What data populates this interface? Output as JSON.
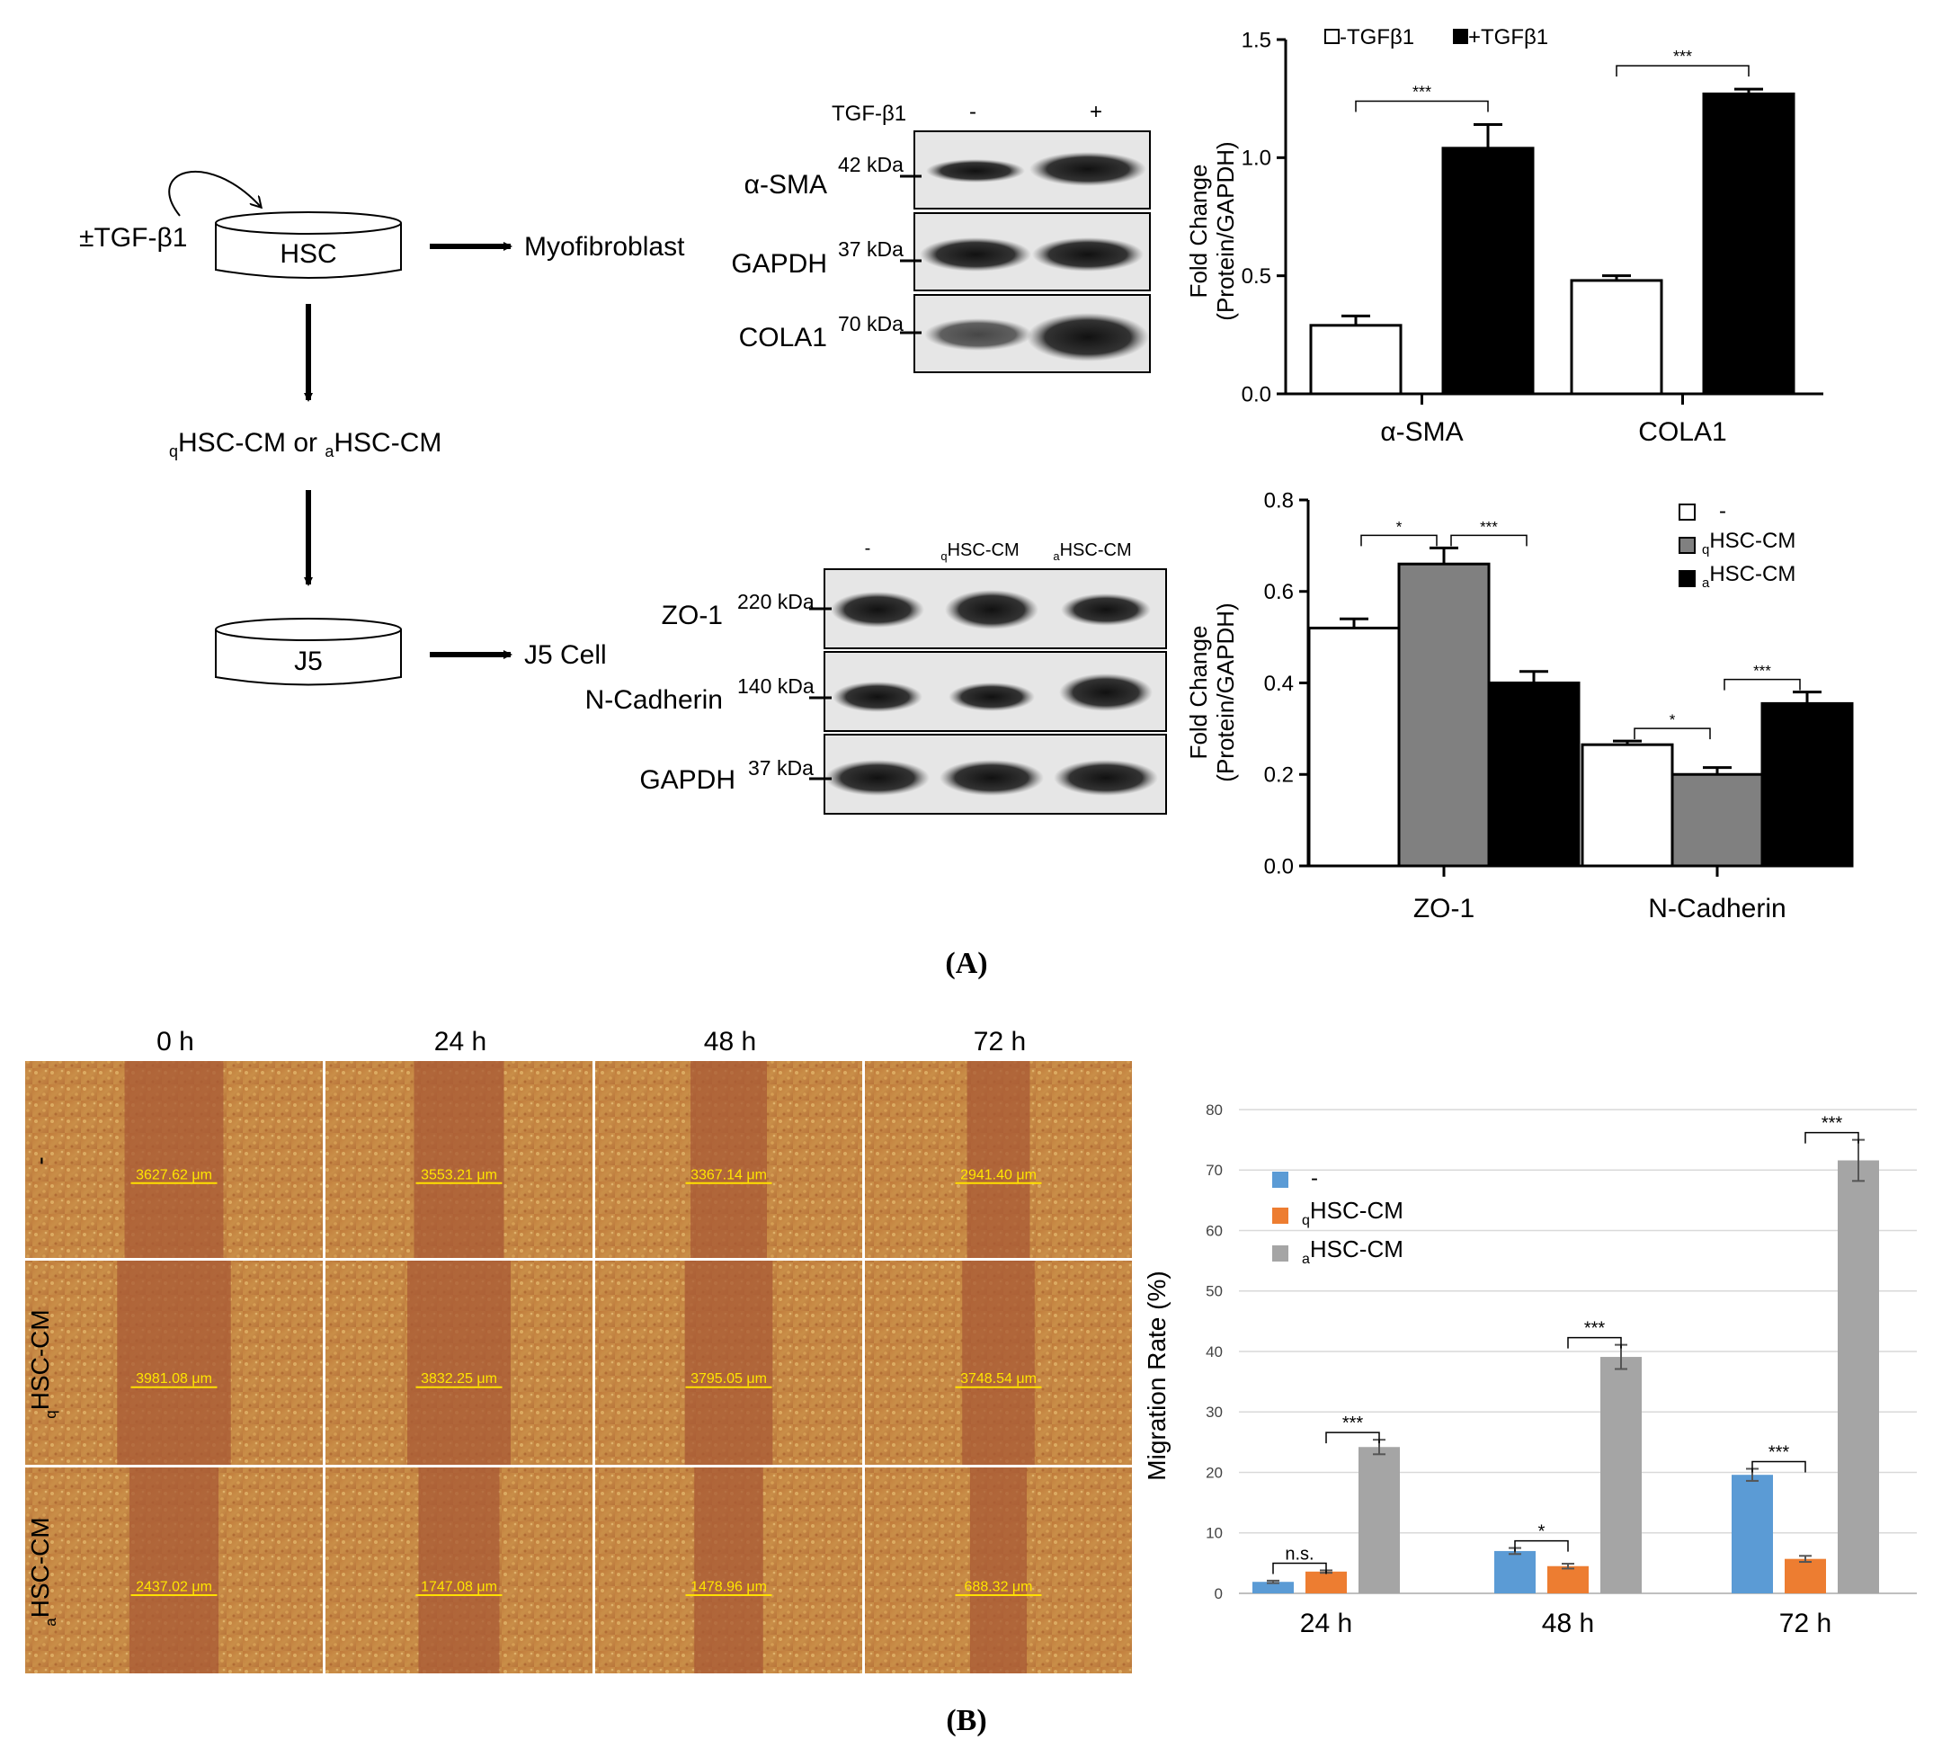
{
  "schematic": {
    "treatment": "±TGF-β1",
    "hsc": "HSC",
    "myofibroblast": "Myofibroblast",
    "conditioned_media_pre": "q",
    "conditioned_media_mid": "HSC-CM or ",
    "conditioned_media_sub2": "a",
    "conditioned_media_post": "HSC-CM",
    "j5": "J5",
    "j5_cell": "J5 Cell"
  },
  "blot_top": {
    "header_label": "TGF-β1",
    "lane_minus": "-",
    "lane_plus": "+",
    "rows": [
      {
        "protein": "α-SMA",
        "kda": "42 kDa"
      },
      {
        "protein": "GAPDH",
        "kda": "37 kDa"
      },
      {
        "protein": "COLA1",
        "kda": "70 kDa"
      }
    ]
  },
  "blot_bottom": {
    "lane1": "-",
    "lane2_sub": "q",
    "lane2": "HSC-CM",
    "lane3_sub": "a",
    "lane3": "HSC-CM",
    "rows": [
      {
        "protein": "ZO-1",
        "kda": "220 kDa"
      },
      {
        "protein": "N-Cadherin",
        "kda": "140 kDa"
      },
      {
        "protein": "GAPDH",
        "kda": "37 kDa"
      }
    ]
  },
  "chart_data": [
    {
      "type": "bar",
      "title": "",
      "ylabel": "Fold Change (Protein/GAPDH)",
      "ylabel_line1": "Fold Change",
      "ylabel_line2": "(Protein/GAPDH)",
      "categories": [
        "α-SMA",
        "COLA1"
      ],
      "series": [
        {
          "name": "-TGFβ1",
          "values": [
            0.29,
            0.48
          ],
          "errors": [
            0.04,
            0.02
          ],
          "color": "#ffffff"
        },
        {
          "name": "+TGFβ1",
          "values": [
            1.04,
            1.27
          ],
          "errors": [
            0.1,
            0.02
          ],
          "color": "#000000"
        }
      ],
      "ylim": [
        0,
        1.5
      ],
      "yticks": [
        0.0,
        0.5,
        1.0,
        1.5
      ],
      "ytick_labels": [
        "0.0",
        "0.5",
        "1.0",
        "1.5"
      ],
      "significance": [
        {
          "category": "α-SMA",
          "label": "***"
        },
        {
          "category": "COLA1",
          "label": "***"
        }
      ]
    },
    {
      "type": "bar",
      "title": "",
      "ylabel": "Fold Change (Protein/GAPDH)",
      "ylabel_line1": "Fold Change",
      "ylabel_line2": "(Protein/GAPDH)",
      "categories": [
        "ZO-1",
        "N-Cadherin"
      ],
      "series": [
        {
          "name": "-",
          "label_sub": "",
          "values": [
            0.52,
            0.265
          ],
          "errors": [
            0.02,
            0.008
          ],
          "color": "#ffffff"
        },
        {
          "name": "HSC-CM",
          "label_sub": "q",
          "values": [
            0.66,
            0.2
          ],
          "errors": [
            0.035,
            0.015
          ],
          "color": "#808080"
        },
        {
          "name": "HSC-CM",
          "label_sub": "a",
          "values": [
            0.4,
            0.355
          ],
          "errors": [
            0.025,
            0.025
          ],
          "color": "#000000"
        }
      ],
      "ylim": [
        0,
        0.8
      ],
      "yticks": [
        0.0,
        0.2,
        0.4,
        0.6,
        0.8
      ],
      "ytick_labels": [
        "0.0",
        "0.2",
        "0.4",
        "0.6",
        "0.8"
      ],
      "significance": [
        {
          "category": "ZO-1",
          "from": 0,
          "to": 1,
          "label": "*"
        },
        {
          "category": "ZO-1",
          "from": 1,
          "to": 2,
          "label": "***"
        },
        {
          "category": "N-Cadherin",
          "from": 0,
          "to": 1,
          "label": "*"
        },
        {
          "category": "N-Cadherin",
          "from": 1,
          "to": 2,
          "label": "***"
        }
      ]
    },
    {
      "type": "bar",
      "title": "",
      "ylabel": "Migration Rate (%)",
      "categories": [
        "24 h",
        "48 h",
        "72 h"
      ],
      "series": [
        {
          "name": "-",
          "label_sub": "",
          "values": [
            1.9,
            7.0,
            19.6
          ],
          "errors": [
            0.2,
            0.5,
            1.0
          ],
          "color": "#5b9bd5"
        },
        {
          "name": "HSC-CM",
          "label_sub": "q",
          "values": [
            3.6,
            4.5,
            5.7
          ],
          "errors": [
            0.2,
            0.4,
            0.5
          ],
          "color": "#ed7d31"
        },
        {
          "name": "HSC-CM",
          "label_sub": "a",
          "values": [
            24.2,
            39.1,
            71.6
          ],
          "errors": [
            1.2,
            2.0,
            3.4
          ],
          "color": "#a5a5a5"
        }
      ],
      "ylim": [
        0,
        80
      ],
      "yticks": [
        0,
        10,
        20,
        30,
        40,
        50,
        60,
        70,
        80
      ],
      "ytick_labels": [
        "0",
        "10",
        "20",
        "30",
        "40",
        "50",
        "60",
        "70",
        "80"
      ],
      "grid": true,
      "significance": [
        {
          "category": "24 h",
          "from": 0,
          "to": 1,
          "label": "n.s."
        },
        {
          "category": "24 h",
          "from": 1,
          "to": 2,
          "label": "***"
        },
        {
          "category": "48 h",
          "from": 0,
          "to": 1,
          "label": "*"
        },
        {
          "category": "48 h",
          "from": 1,
          "to": 2,
          "label": "***"
        },
        {
          "category": "72 h",
          "from": 0,
          "to": 1,
          "label": "***"
        },
        {
          "category": "72 h",
          "from": 1,
          "to": 2,
          "label": "***"
        }
      ]
    }
  ],
  "wound": {
    "col_headers": [
      "0 h",
      "24 h",
      "48 h",
      "72 h"
    ],
    "row_labels": [
      {
        "sub": "",
        "text": "-"
      },
      {
        "sub": "q",
        "text": "HSC-CM"
      },
      {
        "sub": "a",
        "text": "HSC-CM"
      }
    ],
    "measurements": [
      [
        "3627.62 μm",
        "3553.21 μm",
        "3367.14 μm",
        "2941.40 μm"
      ],
      [
        "3981.08 μm",
        "3832.25 μm",
        "3795.05 μm",
        "3748.54 μm"
      ],
      [
        "2437.02 μm",
        "1747.08 μm",
        "1478.96 μm",
        "688.32 μm"
      ]
    ]
  },
  "panel_labels": {
    "a": "(A)",
    "b": "(B)"
  }
}
